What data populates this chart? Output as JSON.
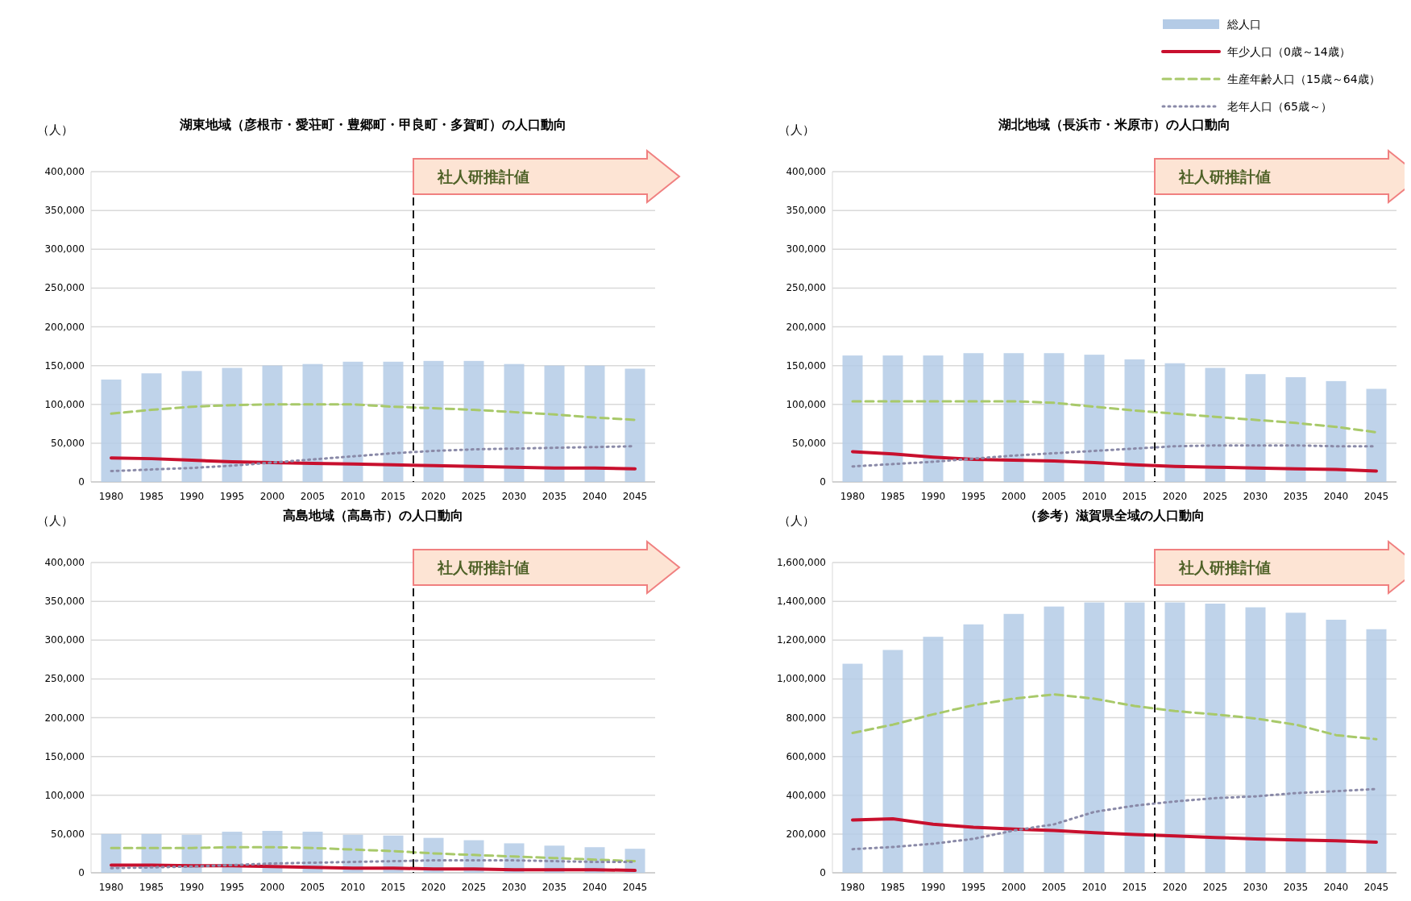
{
  "chart_data": [
    {
      "type": "bar",
      "title": "湖東地域（彦根市・愛荘町・豊郷町・甲良町・多賀町）の人口動向",
      "ylabel": "（人）",
      "categories": [
        "1980",
        "1985",
        "1990",
        "1995",
        "2000",
        "2005",
        "2010",
        "2015",
        "2020",
        "2025",
        "2030",
        "2035",
        "2040",
        "2045"
      ],
      "series": [
        {
          "color": "#b4cbe6",
          "values": [
            132000,
            140000,
            143000,
            147000,
            150000,
            152000,
            155000,
            155000,
            156000,
            156000,
            152000,
            150000,
            150000,
            146000
          ]
        },
        {
          "type": "line",
          "color": "#c8102e",
          "line_style": "solid",
          "values": [
            31000,
            30000,
            28000,
            26000,
            25000,
            24000,
            23000,
            22000,
            21000,
            20000,
            19000,
            18000,
            18000,
            17000
          ]
        },
        {
          "type": "line",
          "color": "#a8c96a",
          "line_style": "dashed",
          "values": [
            88000,
            93000,
            97000,
            99000,
            100000,
            100000,
            100000,
            97000,
            95000,
            93000,
            90000,
            87000,
            83000,
            80000
          ]
        },
        {
          "type": "line",
          "color": "#8a8aa8",
          "line_style": "dotted",
          "values": [
            14000,
            16000,
            18000,
            21000,
            25000,
            29000,
            33000,
            37000,
            40000,
            42000,
            43000,
            44000,
            45000,
            46000
          ]
        }
      ],
      "ylim": [
        0,
        400000
      ],
      "yticks": [
        {
          "value": 0,
          "label": "0"
        },
        {
          "value": 50000,
          "label": "50,000"
        },
        {
          "value": 100000,
          "label": "100,000"
        },
        {
          "value": 150000,
          "label": "150,000"
        },
        {
          "value": 200000,
          "label": "200,000"
        },
        {
          "value": 250000,
          "label": "250,000"
        },
        {
          "value": 300000,
          "label": "300,000"
        },
        {
          "value": 350000,
          "label": "350,000"
        },
        {
          "value": 400000,
          "label": "400,000"
        }
      ],
      "grid": "y",
      "ref_lines": [
        {
          "axis": "x",
          "value": "2020",
          "label": "社人研推計値",
          "line_style": "dashed",
          "color": "#000000"
        }
      ]
    },
    {
      "type": "bar",
      "title": "湖北地域（長浜市・米原市）の人口動向",
      "ylabel": "（人）",
      "legend": "top right",
      "categories": [
        "1980",
        "1985",
        "1990",
        "1995",
        "2000",
        "2005",
        "2010",
        "2015",
        "2020",
        "2025",
        "2030",
        "2035",
        "2040",
        "2045"
      ],
      "series": [
        {
          "name": "総人口",
          "color": "#b4cbe6",
          "values": [
            163000,
            163000,
            163000,
            166000,
            166000,
            166000,
            164000,
            158000,
            153000,
            147000,
            139000,
            135000,
            130000,
            120000
          ]
        },
        {
          "type": "line",
          "name": "年少人口（0歳～14歳）",
          "color": "#c8102e",
          "line_style": "solid",
          "values": [
            39000,
            36000,
            32000,
            29000,
            28000,
            27000,
            25000,
            22000,
            20000,
            19000,
            18000,
            17000,
            16000,
            14000
          ]
        },
        {
          "type": "line",
          "name": "生産年齢人口（15歳～64歳）",
          "color": "#a8c96a",
          "line_style": "dashed",
          "values": [
            104000,
            104000,
            104000,
            104000,
            104000,
            102000,
            97000,
            92000,
            88000,
            84000,
            80000,
            76000,
            71000,
            64000
          ]
        },
        {
          "type": "line",
          "name": "老年人口（65歳～）",
          "color": "#8a8aa8",
          "line_style": "dotted",
          "values": [
            20000,
            23000,
            26000,
            30000,
            34000,
            37000,
            40000,
            43000,
            46000,
            47000,
            47000,
            47000,
            46000,
            46000
          ]
        }
      ],
      "ylim": [
        0,
        400000
      ],
      "yticks": [
        {
          "value": 0,
          "label": "0"
        },
        {
          "value": 50000,
          "label": "50,000"
        },
        {
          "value": 100000,
          "label": "100,000"
        },
        {
          "value": 150000,
          "label": "150,000"
        },
        {
          "value": 200000,
          "label": "200,000"
        },
        {
          "value": 250000,
          "label": "250,000"
        },
        {
          "value": 300000,
          "label": "300,000"
        },
        {
          "value": 350000,
          "label": "350,000"
        },
        {
          "value": 400000,
          "label": "400,000"
        }
      ],
      "grid": "y",
      "ref_lines": [
        {
          "axis": "x",
          "value": "2020",
          "label": "社人研推計値",
          "line_style": "dashed",
          "color": "#000000"
        }
      ]
    },
    {
      "type": "bar",
      "title": "高島地域（高島市）の人口動向",
      "ylabel": "（人）",
      "categories": [
        "1980",
        "1985",
        "1990",
        "1995",
        "2000",
        "2005",
        "2010",
        "2015",
        "2020",
        "2025",
        "2030",
        "2035",
        "2040",
        "2045"
      ],
      "series": [
        {
          "color": "#b4cbe6",
          "values": [
            50000,
            50000,
            49000,
            53000,
            54000,
            53000,
            49000,
            48000,
            45000,
            42000,
            38000,
            35000,
            33000,
            31000
          ]
        },
        {
          "type": "line",
          "color": "#c8102e",
          "line_style": "solid",
          "values": [
            10000,
            10000,
            9000,
            9000,
            8000,
            7000,
            6000,
            6000,
            5000,
            5000,
            4000,
            4000,
            4000,
            3000
          ]
        },
        {
          "type": "line",
          "color": "#a8c96a",
          "line_style": "dashed",
          "values": [
            32000,
            32000,
            32000,
            33000,
            33000,
            32000,
            30000,
            28000,
            25000,
            23000,
            21000,
            19000,
            17000,
            15000
          ]
        },
        {
          "type": "line",
          "color": "#8a8aa8",
          "line_style": "dotted",
          "values": [
            6000,
            7000,
            8000,
            10000,
            12000,
            13000,
            14000,
            15000,
            16000,
            16000,
            16000,
            15000,
            14000,
            14000
          ]
        }
      ],
      "ylim": [
        0,
        400000
      ],
      "yticks": [
        {
          "value": 0,
          "label": "0"
        },
        {
          "value": 50000,
          "label": "50,000"
        },
        {
          "value": 100000,
          "label": "100,000"
        },
        {
          "value": 150000,
          "label": "150,000"
        },
        {
          "value": 200000,
          "label": "200,000"
        },
        {
          "value": 250000,
          "label": "250,000"
        },
        {
          "value": 300000,
          "label": "300,000"
        },
        {
          "value": 350000,
          "label": "350,000"
        },
        {
          "value": 400000,
          "label": "400,000"
        }
      ],
      "grid": "y",
      "ref_lines": [
        {
          "axis": "x",
          "value": "2020",
          "label": "社人研推計値",
          "line_style": "dashed",
          "color": "#000000"
        }
      ]
    },
    {
      "type": "bar",
      "title": "（参考）滋賀県全域の人口動向",
      "ylabel": "（人）",
      "categories": [
        "1980",
        "1985",
        "1990",
        "1995",
        "2000",
        "2005",
        "2010",
        "2015",
        "2020",
        "2025",
        "2030",
        "2035",
        "2040",
        "2045"
      ],
      "series": [
        {
          "color": "#b4cbe6",
          "values": [
            1078000,
            1149000,
            1217000,
            1281000,
            1335000,
            1373000,
            1394000,
            1394000,
            1394000,
            1388000,
            1369000,
            1341000,
            1305000,
            1256000
          ]
        },
        {
          "type": "line",
          "color": "#c8102e",
          "line_style": "solid",
          "values": [
            272000,
            278000,
            250000,
            235000,
            225000,
            218000,
            207000,
            197000,
            190000,
            182000,
            175000,
            169000,
            165000,
            158000
          ]
        },
        {
          "type": "line",
          "color": "#a8c96a",
          "line_style": "dashed",
          "values": [
            721000,
            764000,
            817000,
            864000,
            898000,
            920000,
            898000,
            860000,
            834000,
            817000,
            796000,
            764000,
            710000,
            689000
          ]
        },
        {
          "type": "line",
          "color": "#8a8aa8",
          "line_style": "dotted",
          "values": [
            122000,
            133000,
            150000,
            175000,
            218000,
            250000,
            314000,
            346000,
            368000,
            385000,
            394000,
            411000,
            421000,
            432000
          ]
        }
      ],
      "ylim": [
        0,
        1600000
      ],
      "yticks": [
        {
          "value": 0,
          "label": "0"
        },
        {
          "value": 200000,
          "label": "200,000"
        },
        {
          "value": 400000,
          "label": "400,000"
        },
        {
          "value": 600000,
          "label": "600,000"
        },
        {
          "value": 800000,
          "label": "800,000"
        },
        {
          "value": 1000000,
          "label": "1,000,000"
        },
        {
          "value": 1200000,
          "label": "1,200,000"
        },
        {
          "value": 1400000,
          "label": "1,400,000"
        },
        {
          "value": 1600000,
          "label": "1,600,000"
        }
      ],
      "grid": "y",
      "ref_lines": [
        {
          "axis": "x",
          "value": "2020",
          "label": "社人研推計値",
          "line_style": "dashed",
          "color": "#000000"
        }
      ]
    }
  ]
}
